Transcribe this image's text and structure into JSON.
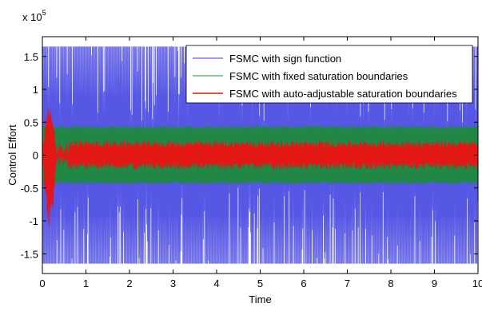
{
  "chart_data": {
    "type": "line",
    "title": "",
    "xlabel": "Time",
    "ylabel": "Control Effort",
    "multiplier_label": {
      "base": "x 10",
      "exponent": "5"
    },
    "xlim": [
      0,
      10
    ],
    "ylim": [
      -1.8,
      1.8
    ],
    "x_ticks": [
      0,
      1,
      2,
      3,
      4,
      5,
      6,
      7,
      8,
      9,
      10
    ],
    "x_tick_labels": [
      "0",
      "1",
      "2",
      "3",
      "4",
      "5",
      "6",
      "7",
      "8",
      "9",
      "10"
    ],
    "y_ticks": [
      -1.5,
      -1,
      -0.5,
      0,
      0.5,
      1,
      1.5
    ],
    "y_tick_labels": [
      "-1.5",
      "-1",
      "-0.5",
      "0",
      "0.5",
      "1",
      "1.5"
    ],
    "grid": false,
    "legend_position": "top-right",
    "series": [
      {
        "name": "FSMC with sign function",
        "color": "#3a3ae0",
        "style": "dense oscillation",
        "amplitude": 1.65,
        "x_range": [
          0,
          10
        ]
      },
      {
        "name": "FSMC with fixed saturation boundaries",
        "color": "#1e8a3c",
        "style": "dense oscillation",
        "amplitude": 0.45,
        "x_range": [
          0,
          10
        ]
      },
      {
        "name": "FSMC with auto-adjustable saturation boundaries",
        "color": "#ee1111",
        "style": "dense oscillation",
        "transient_peaks": {
          "max": 0.78,
          "min": -1.1,
          "x_range": [
            0,
            0.6
          ]
        },
        "steady_amplitude": 0.22,
        "x_range": [
          0,
          10
        ]
      }
    ]
  }
}
